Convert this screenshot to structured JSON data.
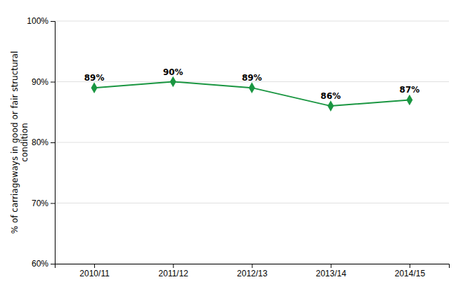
{
  "chart_data": {
    "type": "line",
    "ylabel": "% of carriageways in good or fair structural\ncondition",
    "categories": [
      "2010/11",
      "2011/12",
      "2012/13",
      "2013/14",
      "2014/15"
    ],
    "values": [
      89,
      90,
      89,
      86,
      87
    ],
    "value_labels": [
      "89%",
      "90%",
      "89%",
      "86%",
      "87%"
    ],
    "data_labels": true,
    "color": "#1a9641",
    "marker": "diamond",
    "ylim": [
      60,
      100
    ],
    "yticks": [
      {
        "value": 60,
        "label": "60%"
      },
      {
        "value": 70,
        "label": "70%"
      },
      {
        "value": 80,
        "label": "80%"
      },
      {
        "value": 90,
        "label": "90%"
      },
      {
        "value": 100,
        "label": "100%"
      }
    ],
    "grid": true
  }
}
